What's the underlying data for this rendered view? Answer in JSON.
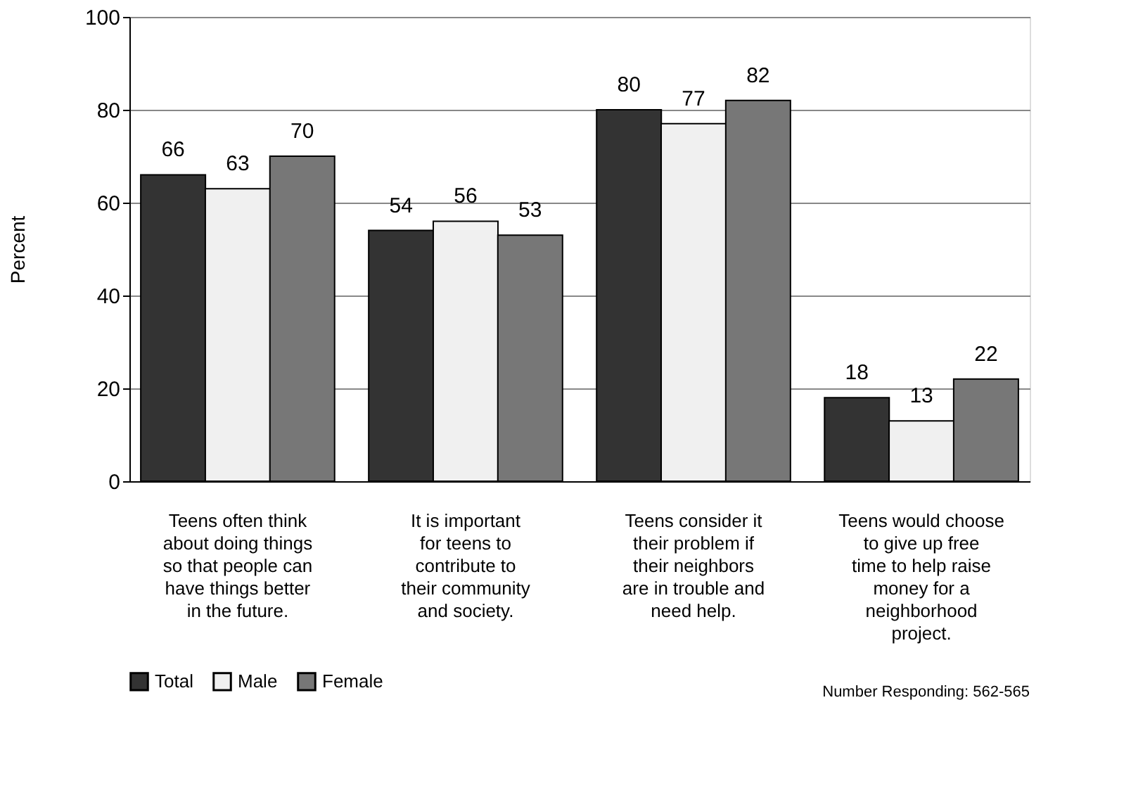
{
  "chart_data": {
    "type": "bar",
    "ylabel": "Percent",
    "categories": [
      "Teens often think about doing things so that people can have things better in the future.",
      "It is important for teens to contribute to their community and society.",
      "Teens consider it their problem if their neighbors are in trouble and need help.",
      "Teens would choose to give up free time to help raise money for a neighborhood project."
    ],
    "series": [
      {
        "name": "Total",
        "color": "#333333",
        "values": [
          66,
          54,
          80,
          18
        ]
      },
      {
        "name": "Male",
        "color": "#f0f0f0",
        "values": [
          63,
          56,
          77,
          13
        ]
      },
      {
        "name": "Female",
        "color": "#777777",
        "values": [
          70,
          53,
          82,
          22
        ]
      }
    ],
    "ylim": [
      0,
      100
    ],
    "yticks": [
      0,
      20,
      40,
      60,
      80,
      100
    ],
    "grid": "y",
    "data_labels": true,
    "legend": "bottom left",
    "annotations": [
      "Number Responding:  562-565"
    ]
  }
}
